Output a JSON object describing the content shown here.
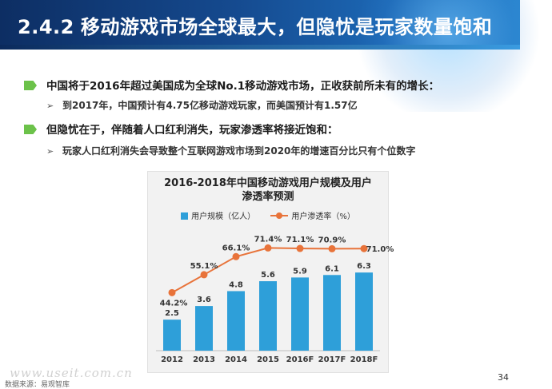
{
  "header": {
    "section_number": "2.4.2",
    "title": "移动游戏市场全球最大，但隐忧是玩家数量饱和"
  },
  "bullets": [
    {
      "level": 1,
      "text": "中国将于2016年超过美国成为全球No.1移动游戏市场，正收获前所未有的增长："
    },
    {
      "level": 2,
      "text": "到2017年，中国预计有4.75亿移动游戏玩家，而美国预计有1.57亿"
    },
    {
      "level": 1,
      "text": "但隐忧在于，伴随着人口红利消失，玩家渗透率将接近饱和："
    },
    {
      "level": 2,
      "text": "玩家人口红利消失会导致整个互联网游戏市场到2020年的增速百分比只有个位数字"
    }
  ],
  "chart_data": {
    "type": "bar",
    "title_line1": "2016-2018年中国移动游戏用户规模及用户",
    "title_line2": "渗透率预测",
    "categories": [
      "2012",
      "2013",
      "2014",
      "2015",
      "2016F",
      "2017F",
      "2018F"
    ],
    "series": [
      {
        "name": "用户规模（亿人）",
        "type": "bar",
        "values": [
          2.5,
          3.6,
          4.8,
          5.6,
          5.9,
          6.1,
          6.3
        ],
        "labels": [
          "2.5",
          "3.6",
          "4.8",
          "5.6",
          "5.9",
          "6.1",
          "6.3"
        ],
        "color": "#2e9fd9"
      },
      {
        "name": "用户渗透率（%）",
        "type": "line",
        "values": [
          44.2,
          55.1,
          66.1,
          71.4,
          71.1,
          70.9,
          71.0
        ],
        "labels": [
          "44.2%",
          "55.1%",
          "66.1%",
          "71.4%",
          "71.1%",
          "70.9%",
          "71.0%"
        ],
        "color": "#e8733a"
      }
    ],
    "grid": false,
    "legend_position": "top"
  },
  "footer": {
    "page_number": "34",
    "source": "数据来源：易观智库",
    "watermark": "www.useit.com.cn"
  }
}
